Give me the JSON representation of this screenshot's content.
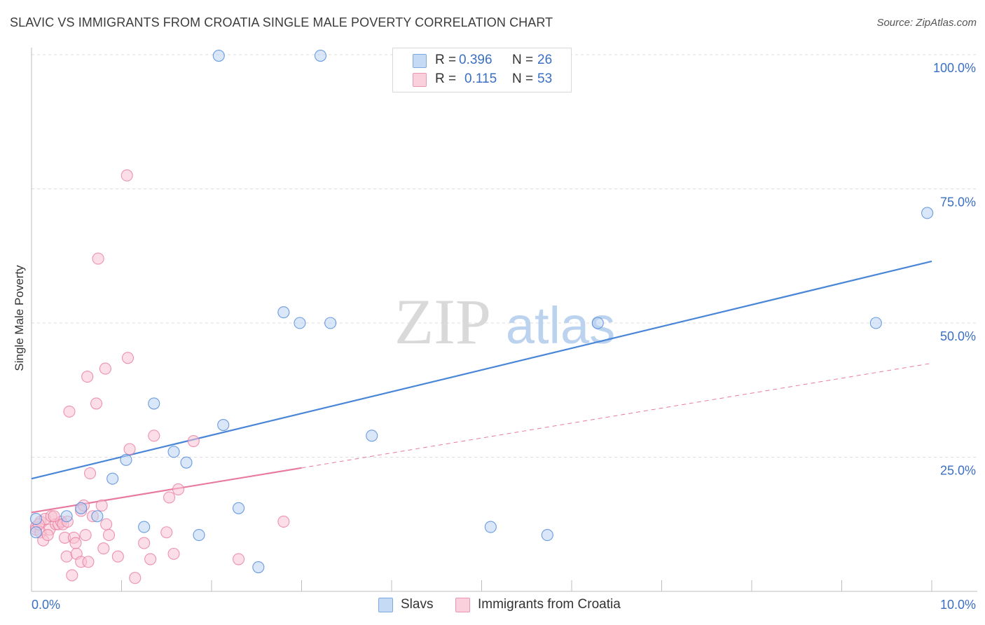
{
  "title": "SLAVIC VS IMMIGRANTS FROM CROATIA SINGLE MALE POVERTY CORRELATION CHART",
  "source": "Source: ZipAtlas.com",
  "watermark": {
    "zip": "ZIP",
    "atlas": "atlas"
  },
  "legend": {
    "rows": [
      {
        "r_label": "R =",
        "r_value": "0.396",
        "n_label": "N =",
        "n_value": "26",
        "color": "#a9c8f0"
      },
      {
        "r_label": "R =",
        "r_value": "0.115",
        "n_label": "N =",
        "n_value": "53",
        "color": "#f7b8cb"
      }
    ]
  },
  "bottom_legend": [
    {
      "label": "Slavs",
      "color": "#a9c8f0"
    },
    {
      "label": "Immigrants from Croatia",
      "color": "#f7b8cb"
    }
  ],
  "chart_data": {
    "type": "scatter",
    "title": "SLAVIC VS IMMIGRANTS FROM CROATIA SINGLE MALE POVERTY CORRELATION CHART",
    "xlabel": "",
    "ylabel": "Single Male Poverty",
    "xlim": [
      0,
      10
    ],
    "ylim": [
      0,
      100
    ],
    "x_tick_labels": [
      "0.0%",
      "10.0%"
    ],
    "y_tick_labels": [
      "25.0%",
      "50.0%",
      "75.0%",
      "100.0%"
    ],
    "grid": true,
    "series": [
      {
        "name": "Slavs",
        "color": "#4a86d8",
        "fill": "#bcd3f3",
        "points": [
          [
            0.05,
            13.5
          ],
          [
            0.05,
            11.0
          ],
          [
            0.39,
            14.0
          ],
          [
            0.55,
            15.5
          ],
          [
            0.73,
            14.0
          ],
          [
            0.9,
            21.0
          ],
          [
            1.05,
            24.5
          ],
          [
            1.25,
            12.0
          ],
          [
            1.36,
            35.0
          ],
          [
            1.58,
            26.0
          ],
          [
            1.72,
            24.0
          ],
          [
            1.86,
            10.5
          ],
          [
            2.08,
            99.8
          ],
          [
            2.13,
            31.0
          ],
          [
            2.3,
            15.5
          ],
          [
            2.52,
            4.5
          ],
          [
            2.8,
            52.0
          ],
          [
            2.98,
            50.0
          ],
          [
            3.21,
            99.8
          ],
          [
            3.32,
            50.0
          ],
          [
            3.78,
            29.0
          ],
          [
            5.1,
            12.0
          ],
          [
            5.73,
            10.5
          ],
          [
            6.29,
            50.0
          ],
          [
            9.38,
            50.0
          ],
          [
            9.95,
            70.5
          ]
        ],
        "trend": {
          "x": [
            0,
            10
          ],
          "y": [
            21.0,
            61.5
          ],
          "style": "solid"
        }
      },
      {
        "name": "Immigrants from Croatia",
        "color": "#e87a9f",
        "fill": "#f8c3d3",
        "points": [
          [
            0.05,
            12.0
          ],
          [
            0.05,
            11.5
          ],
          [
            0.1,
            13.0
          ],
          [
            0.1,
            11.0
          ],
          [
            0.13,
            9.5
          ],
          [
            0.15,
            13.5
          ],
          [
            0.2,
            11.5
          ],
          [
            0.22,
            14.0
          ],
          [
            0.27,
            12.5
          ],
          [
            0.3,
            12.5
          ],
          [
            0.33,
            13.0
          ],
          [
            0.35,
            12.5
          ],
          [
            0.37,
            10.0
          ],
          [
            0.39,
            6.5
          ],
          [
            0.4,
            13.0
          ],
          [
            0.42,
            33.5
          ],
          [
            0.45,
            3.0
          ],
          [
            0.47,
            10.0
          ],
          [
            0.49,
            9.0
          ],
          [
            0.5,
            7.0
          ],
          [
            0.55,
            15.0
          ],
          [
            0.55,
            5.5
          ],
          [
            0.6,
            10.5
          ],
          [
            0.62,
            40.0
          ],
          [
            0.63,
            5.5
          ],
          [
            0.65,
            22.0
          ],
          [
            0.68,
            14.0
          ],
          [
            0.72,
            35.0
          ],
          [
            0.74,
            62.0
          ],
          [
            0.78,
            16.0
          ],
          [
            0.8,
            8.0
          ],
          [
            0.82,
            41.5
          ],
          [
            0.83,
            12.5
          ],
          [
            0.86,
            10.5
          ],
          [
            0.96,
            6.5
          ],
          [
            1.06,
            77.5
          ],
          [
            1.07,
            43.5
          ],
          [
            1.09,
            26.5
          ],
          [
            1.15,
            2.5
          ],
          [
            1.25,
            9.0
          ],
          [
            1.32,
            6.0
          ],
          [
            1.36,
            29.0
          ],
          [
            1.5,
            11.0
          ],
          [
            1.53,
            17.5
          ],
          [
            1.58,
            7.0
          ],
          [
            1.63,
            19.0
          ],
          [
            1.8,
            28.0
          ],
          [
            2.3,
            6.0
          ],
          [
            2.8,
            13.0
          ],
          [
            0.25,
            14.0
          ],
          [
            0.08,
            12.5
          ],
          [
            0.18,
            10.5
          ],
          [
            0.58,
            16.0
          ]
        ],
        "trend": {
          "x": [
            0,
            3.0
          ],
          "y": [
            14.7,
            23.0
          ],
          "style": "solid",
          "extension": {
            "x": [
              3.0,
              10.0
            ],
            "y": [
              23.0,
              42.5
            ],
            "style": "dashed"
          }
        }
      }
    ]
  }
}
